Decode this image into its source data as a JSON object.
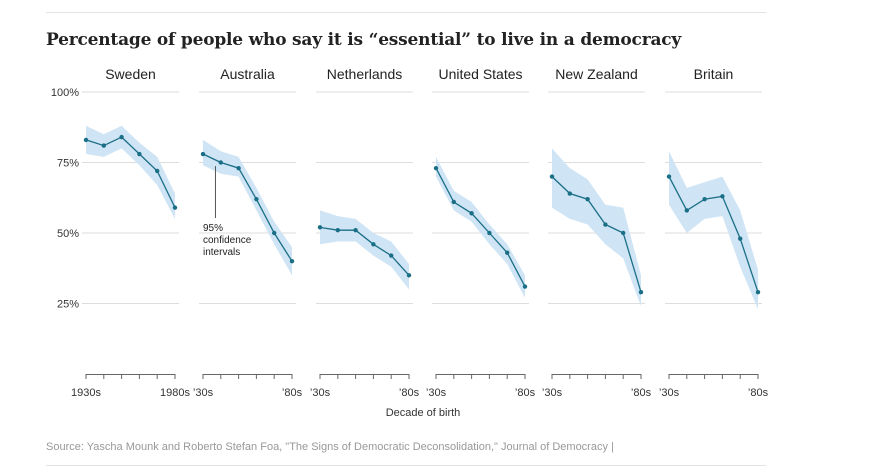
{
  "title": "Percentage of people who say it is “essential” to live in a democracy",
  "source": "Source: Yascha Mounk and Roberto Stefan Foa, \"The Signs of Democratic Deconsolidation,\" Journal of Democracy |",
  "colors": {
    "line": "#1a6f86",
    "band": "#cfe4f4",
    "grid": "#dddddd",
    "text": "#333333"
  },
  "chart_data": {
    "type": "line",
    "title": "Percentage of people who say it is “essential” to live in a democracy",
    "xlabel": "Decade of birth",
    "ylabel": "",
    "ylim": [
      0,
      100
    ],
    "yticks": [
      100,
      75,
      50,
      25
    ],
    "ytick_labels": [
      "100%",
      "75%",
      "50%",
      "25%"
    ],
    "x": [
      1930,
      1940,
      1950,
      1960,
      1970,
      1980
    ],
    "annotation": "95%\nconfidence\nintervals",
    "annotation_panel": "Australia",
    "series": [
      {
        "name": "Sweden",
        "x_tick_labels": [
          "1930s",
          "1980s"
        ],
        "values": [
          83,
          81,
          84,
          78,
          72,
          59
        ],
        "lower": [
          78,
          77,
          80,
          74,
          67,
          55
        ],
        "upper": [
          88,
          85,
          88,
          82,
          77,
          64
        ]
      },
      {
        "name": "Australia",
        "x_tick_labels": [
          "’30s",
          "’80s"
        ],
        "values": [
          78,
          75,
          73,
          62,
          50,
          40
        ],
        "lower": [
          74,
          71,
          70,
          58,
          46,
          35
        ],
        "upper": [
          83,
          79,
          77,
          66,
          54,
          45
        ]
      },
      {
        "name": "Netherlands",
        "x_tick_labels": [
          "’30s",
          "’80s"
        ],
        "values": [
          52,
          51,
          51,
          46,
          42,
          35
        ],
        "lower": [
          46,
          47,
          47,
          42,
          38,
          30
        ],
        "upper": [
          58,
          56,
          55,
          50,
          47,
          39
        ]
      },
      {
        "name": "United States",
        "x_tick_labels": [
          "’30s",
          "’80s"
        ],
        "values": [
          73,
          61,
          57,
          50,
          43,
          31
        ],
        "lower": [
          70,
          58,
          54,
          46,
          39,
          27
        ],
        "upper": [
          77,
          65,
          61,
          53,
          46,
          35
        ]
      },
      {
        "name": "New Zealand",
        "x_tick_labels": [
          "’30s",
          "’80s"
        ],
        "values": [
          70,
          64,
          62,
          53,
          50,
          29
        ],
        "lower": [
          59,
          55,
          53,
          46,
          41,
          24
        ],
        "upper": [
          80,
          73,
          69,
          60,
          59,
          35
        ]
      },
      {
        "name": "Britain",
        "x_tick_labels": [
          "’30s",
          "’80s"
        ],
        "values": [
          70,
          58,
          62,
          63,
          48,
          29
        ],
        "lower": [
          60,
          50,
          55,
          56,
          38,
          23
        ],
        "upper": [
          79,
          66,
          68,
          70,
          58,
          37
        ]
      }
    ]
  }
}
